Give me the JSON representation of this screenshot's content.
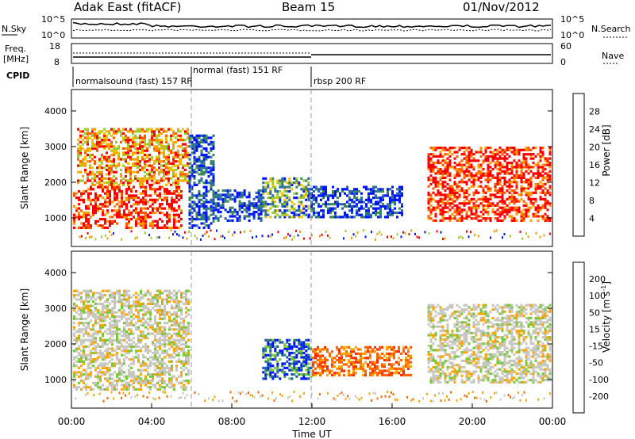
{
  "header": {
    "title_left": "Adak East (fitACF)",
    "title_center": "Beam 15",
    "title_right": "01/Nov/2012"
  },
  "top_panels": {
    "nsky_label": "N.Sky",
    "nsky_ticks": [
      "10^5",
      "10^0"
    ],
    "nsearch_label": "N.Search",
    "nsearch_ticks": [
      "10^5",
      "10^0"
    ],
    "freq_label_1": "Freq.",
    "freq_label_2": "[MHz]",
    "freq_ticks": [
      "18",
      "8"
    ],
    "nave_label": "Nave",
    "nave_ticks": [
      "60",
      "0"
    ],
    "cpid_label": "CPID",
    "cpid_segments": [
      {
        "label": "normalsound (fast) 157 RF",
        "start_hour": 0.0,
        "end_hour": 6.0
      },
      {
        "label": "normal (fast) 151 RF",
        "start_hour": 6.0,
        "end_hour": 12.0
      },
      {
        "label": "rbsp 200 RF",
        "start_hour": 12.0,
        "end_hour": 24.0
      }
    ]
  },
  "chart_data": [
    {
      "type": "heatmap",
      "panel": "power",
      "ylabel": "Slant Range [km]",
      "yticks": [
        "1000",
        "2000",
        "3000",
        "4000"
      ],
      "ylim": [
        200,
        4600
      ],
      "xlim": [
        0,
        24
      ],
      "colorbar_label": "Power [dB]",
      "colorbar_ticks": [
        "28",
        "24",
        "20",
        "16",
        "12",
        "8",
        "4"
      ],
      "colorbar_colors": [
        "#ff0000",
        "#ff5a00",
        "#ff9a00",
        "#f0c000",
        "#9ccc30",
        "#3c8a5a",
        "#2a6aa8",
        "#0014ff"
      ],
      "blobs": [
        {
          "h0": 0.0,
          "h1": 5.5,
          "r0": 700,
          "r1": 1900,
          "level": "high"
        },
        {
          "h0": 0.2,
          "h1": 5.8,
          "r0": 1900,
          "r1": 3500,
          "level": "mixed"
        },
        {
          "h0": 5.8,
          "h1": 7.0,
          "r0": 700,
          "r1": 3300,
          "level": "low"
        },
        {
          "h0": 7.0,
          "h1": 9.5,
          "r0": 900,
          "r1": 1800,
          "level": "low"
        },
        {
          "h0": 9.5,
          "h1": 11.8,
          "r0": 1000,
          "r1": 2100,
          "level": "mid"
        },
        {
          "h0": 11.8,
          "h1": 16.5,
          "r0": 1000,
          "r1": 1900,
          "level": "low"
        },
        {
          "h0": 17.8,
          "h1": 24.0,
          "r0": 900,
          "r1": 3000,
          "level": "high"
        }
      ]
    },
    {
      "type": "heatmap",
      "panel": "velocity",
      "ylabel": "Slant Range [km]",
      "yticks": [
        "1000",
        "2000",
        "3000",
        "4000"
      ],
      "ylim": [
        200,
        4600
      ],
      "xlim": [
        0,
        24
      ],
      "xlabel": "Time UT",
      "xticks": [
        "00:00",
        "04:00",
        "08:00",
        "12:00",
        "16:00",
        "20:00",
        "00:00"
      ],
      "colorbar_label": "Velocity [m s",
      "colorbar_label_sup": "-1",
      "colorbar_ticks": [
        "200",
        "100",
        "50",
        "15",
        "-15",
        "-50",
        "-100",
        "-200"
      ],
      "colorbar_colors": [
        "#0014ff",
        "#1a5ab0",
        "#2f8a5c",
        "#7ac83c",
        "#c8c8c0",
        "#ffa500",
        "#ff6400",
        "#ff2a00",
        "#ff0000"
      ],
      "blobs": [
        {
          "h0": 0.0,
          "h1": 5.8,
          "r0": 700,
          "r1": 3500,
          "level": "grey"
        },
        {
          "h0": 9.5,
          "h1": 12.0,
          "r0": 1000,
          "r1": 2100,
          "level": "blue"
        },
        {
          "h0": 12.0,
          "h1": 17.0,
          "r0": 1100,
          "r1": 1900,
          "level": "orange"
        },
        {
          "h0": 17.8,
          "h1": 24.0,
          "r0": 900,
          "r1": 3100,
          "level": "grey"
        }
      ]
    }
  ]
}
